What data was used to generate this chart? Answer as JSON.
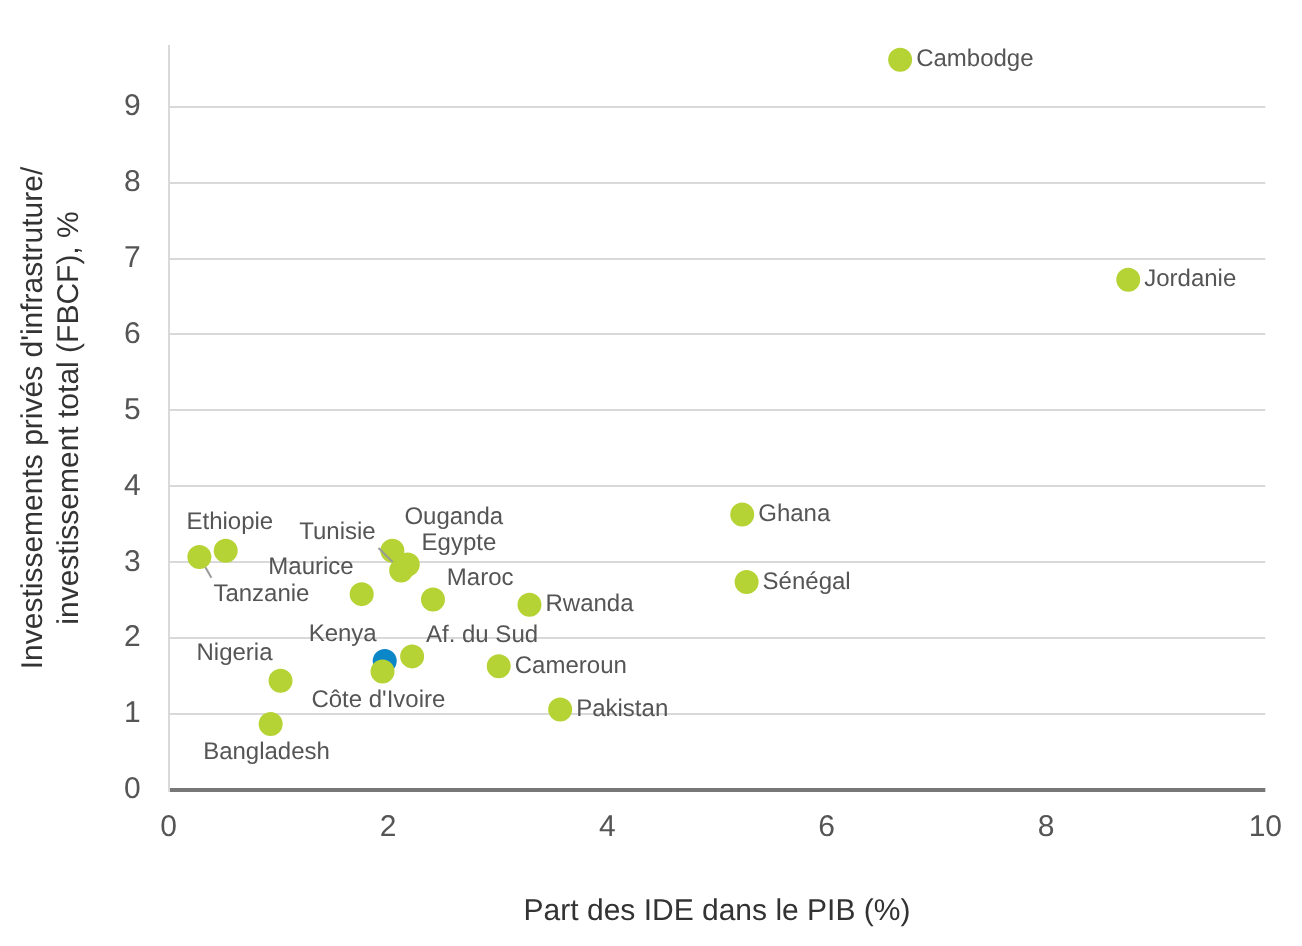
{
  "chart_data": {
    "type": "scatter",
    "xlabel": "Part des IDE dans le PIB (%)",
    "ylabel": "Investissements privés d'infrastruture/\ninvestissement total (FBCF), %",
    "xlim": [
      0,
      10
    ],
    "xticks": [
      0,
      2,
      4,
      6,
      8,
      10
    ],
    "ylim": [
      0,
      9.8
    ],
    "yticks": [
      0,
      1,
      2,
      3,
      4,
      5,
      6,
      7,
      8,
      9
    ],
    "grid": "y",
    "legend": false,
    "marker": "circle",
    "series": [
      {
        "name": "Cambodge",
        "color": "#b5d334",
        "x": [
          6.67
        ],
        "values": [
          9.62
        ]
      },
      {
        "name": "Jordanie",
        "color": "#b5d334",
        "x": [
          8.75
        ],
        "values": [
          6.72
        ]
      },
      {
        "name": "Ghana",
        "color": "#b5d334",
        "x": [
          5.23
        ],
        "values": [
          3.63
        ]
      },
      {
        "name": "Sénégal",
        "color": "#b5d334",
        "x": [
          5.27
        ],
        "values": [
          2.74
        ]
      },
      {
        "name": "Tanzanie",
        "color": "#b5d334",
        "x": [
          0.28
        ],
        "values": [
          3.07
        ]
      },
      {
        "name": "Ethiopie",
        "color": "#b5d334",
        "x": [
          0.52
        ],
        "values": [
          3.15
        ]
      },
      {
        "name": "Ouganda",
        "color": "#b5d334",
        "x": [
          2.04
        ],
        "values": [
          3.15
        ]
      },
      {
        "name": "Egypte",
        "color": "#b5d334",
        "x": [
          2.18
        ],
        "values": [
          2.97
        ]
      },
      {
        "name": "Tunisie",
        "color": "#b5d334",
        "x": [
          2.12
        ],
        "values": [
          2.89
        ]
      },
      {
        "name": "Maurice",
        "color": "#b5d334",
        "x": [
          1.76
        ],
        "values": [
          2.58
        ]
      },
      {
        "name": "Maroc",
        "color": "#b5d334",
        "x": [
          2.41
        ],
        "values": [
          2.51
        ]
      },
      {
        "name": "Rwanda",
        "color": "#b5d334",
        "x": [
          3.29
        ],
        "values": [
          2.44
        ]
      },
      {
        "name": "Af. du Sud",
        "color": "#b5d334",
        "x": [
          2.22
        ],
        "values": [
          1.76
        ]
      },
      {
        "name": "Kenya",
        "color": "#0b86c9",
        "x": [
          1.97
        ],
        "values": [
          1.7
        ]
      },
      {
        "name": "Côte d'Ivoire",
        "color": "#b5d334",
        "x": [
          1.95
        ],
        "values": [
          1.56
        ]
      },
      {
        "name": "Cameroun",
        "color": "#b5d334",
        "x": [
          3.01
        ],
        "values": [
          1.63
        ]
      },
      {
        "name": "Nigeria",
        "color": "#b5d334",
        "x": [
          1.02
        ],
        "values": [
          1.44
        ]
      },
      {
        "name": "Pakistan",
        "color": "#b5d334",
        "x": [
          3.57
        ],
        "values": [
          1.06
        ]
      },
      {
        "name": "Bangladesh",
        "color": "#b5d334",
        "x": [
          0.93
        ],
        "values": [
          0.87
        ]
      }
    ]
  }
}
